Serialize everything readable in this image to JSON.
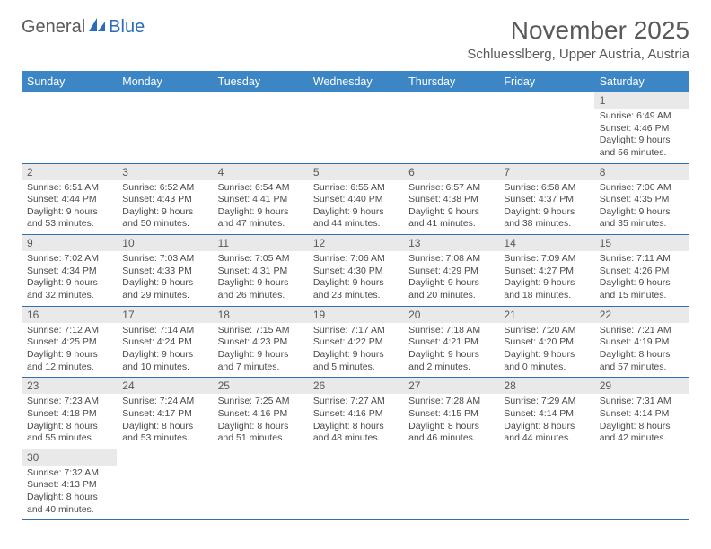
{
  "logo": {
    "text1": "General",
    "text2": "Blue"
  },
  "header": {
    "month_title": "November 2025",
    "location": "Schluesslberg, Upper Austria, Austria"
  },
  "colors": {
    "header_bg": "#3d86c6",
    "header_text": "#ffffff",
    "daynum_bg": "#e9e9e9",
    "row_divider": "#2f6fb3",
    "body_text": "#4a4a4a",
    "title_text": "#595959"
  },
  "day_names": [
    "Sunday",
    "Monday",
    "Tuesday",
    "Wednesday",
    "Thursday",
    "Friday",
    "Saturday"
  ],
  "weeks": [
    [
      null,
      null,
      null,
      null,
      null,
      null,
      {
        "n": "1",
        "sr": "Sunrise: 6:49 AM",
        "ss": "Sunset: 4:46 PM",
        "d1": "Daylight: 9 hours",
        "d2": "and 56 minutes."
      }
    ],
    [
      {
        "n": "2",
        "sr": "Sunrise: 6:51 AM",
        "ss": "Sunset: 4:44 PM",
        "d1": "Daylight: 9 hours",
        "d2": "and 53 minutes."
      },
      {
        "n": "3",
        "sr": "Sunrise: 6:52 AM",
        "ss": "Sunset: 4:43 PM",
        "d1": "Daylight: 9 hours",
        "d2": "and 50 minutes."
      },
      {
        "n": "4",
        "sr": "Sunrise: 6:54 AM",
        "ss": "Sunset: 4:41 PM",
        "d1": "Daylight: 9 hours",
        "d2": "and 47 minutes."
      },
      {
        "n": "5",
        "sr": "Sunrise: 6:55 AM",
        "ss": "Sunset: 4:40 PM",
        "d1": "Daylight: 9 hours",
        "d2": "and 44 minutes."
      },
      {
        "n": "6",
        "sr": "Sunrise: 6:57 AM",
        "ss": "Sunset: 4:38 PM",
        "d1": "Daylight: 9 hours",
        "d2": "and 41 minutes."
      },
      {
        "n": "7",
        "sr": "Sunrise: 6:58 AM",
        "ss": "Sunset: 4:37 PM",
        "d1": "Daylight: 9 hours",
        "d2": "and 38 minutes."
      },
      {
        "n": "8",
        "sr": "Sunrise: 7:00 AM",
        "ss": "Sunset: 4:35 PM",
        "d1": "Daylight: 9 hours",
        "d2": "and 35 minutes."
      }
    ],
    [
      {
        "n": "9",
        "sr": "Sunrise: 7:02 AM",
        "ss": "Sunset: 4:34 PM",
        "d1": "Daylight: 9 hours",
        "d2": "and 32 minutes."
      },
      {
        "n": "10",
        "sr": "Sunrise: 7:03 AM",
        "ss": "Sunset: 4:33 PM",
        "d1": "Daylight: 9 hours",
        "d2": "and 29 minutes."
      },
      {
        "n": "11",
        "sr": "Sunrise: 7:05 AM",
        "ss": "Sunset: 4:31 PM",
        "d1": "Daylight: 9 hours",
        "d2": "and 26 minutes."
      },
      {
        "n": "12",
        "sr": "Sunrise: 7:06 AM",
        "ss": "Sunset: 4:30 PM",
        "d1": "Daylight: 9 hours",
        "d2": "and 23 minutes."
      },
      {
        "n": "13",
        "sr": "Sunrise: 7:08 AM",
        "ss": "Sunset: 4:29 PM",
        "d1": "Daylight: 9 hours",
        "d2": "and 20 minutes."
      },
      {
        "n": "14",
        "sr": "Sunrise: 7:09 AM",
        "ss": "Sunset: 4:27 PM",
        "d1": "Daylight: 9 hours",
        "d2": "and 18 minutes."
      },
      {
        "n": "15",
        "sr": "Sunrise: 7:11 AM",
        "ss": "Sunset: 4:26 PM",
        "d1": "Daylight: 9 hours",
        "d2": "and 15 minutes."
      }
    ],
    [
      {
        "n": "16",
        "sr": "Sunrise: 7:12 AM",
        "ss": "Sunset: 4:25 PM",
        "d1": "Daylight: 9 hours",
        "d2": "and 12 minutes."
      },
      {
        "n": "17",
        "sr": "Sunrise: 7:14 AM",
        "ss": "Sunset: 4:24 PM",
        "d1": "Daylight: 9 hours",
        "d2": "and 10 minutes."
      },
      {
        "n": "18",
        "sr": "Sunrise: 7:15 AM",
        "ss": "Sunset: 4:23 PM",
        "d1": "Daylight: 9 hours",
        "d2": "and 7 minutes."
      },
      {
        "n": "19",
        "sr": "Sunrise: 7:17 AM",
        "ss": "Sunset: 4:22 PM",
        "d1": "Daylight: 9 hours",
        "d2": "and 5 minutes."
      },
      {
        "n": "20",
        "sr": "Sunrise: 7:18 AM",
        "ss": "Sunset: 4:21 PM",
        "d1": "Daylight: 9 hours",
        "d2": "and 2 minutes."
      },
      {
        "n": "21",
        "sr": "Sunrise: 7:20 AM",
        "ss": "Sunset: 4:20 PM",
        "d1": "Daylight: 9 hours",
        "d2": "and 0 minutes."
      },
      {
        "n": "22",
        "sr": "Sunrise: 7:21 AM",
        "ss": "Sunset: 4:19 PM",
        "d1": "Daylight: 8 hours",
        "d2": "and 57 minutes."
      }
    ],
    [
      {
        "n": "23",
        "sr": "Sunrise: 7:23 AM",
        "ss": "Sunset: 4:18 PM",
        "d1": "Daylight: 8 hours",
        "d2": "and 55 minutes."
      },
      {
        "n": "24",
        "sr": "Sunrise: 7:24 AM",
        "ss": "Sunset: 4:17 PM",
        "d1": "Daylight: 8 hours",
        "d2": "and 53 minutes."
      },
      {
        "n": "25",
        "sr": "Sunrise: 7:25 AM",
        "ss": "Sunset: 4:16 PM",
        "d1": "Daylight: 8 hours",
        "d2": "and 51 minutes."
      },
      {
        "n": "26",
        "sr": "Sunrise: 7:27 AM",
        "ss": "Sunset: 4:16 PM",
        "d1": "Daylight: 8 hours",
        "d2": "and 48 minutes."
      },
      {
        "n": "27",
        "sr": "Sunrise: 7:28 AM",
        "ss": "Sunset: 4:15 PM",
        "d1": "Daylight: 8 hours",
        "d2": "and 46 minutes."
      },
      {
        "n": "28",
        "sr": "Sunrise: 7:29 AM",
        "ss": "Sunset: 4:14 PM",
        "d1": "Daylight: 8 hours",
        "d2": "and 44 minutes."
      },
      {
        "n": "29",
        "sr": "Sunrise: 7:31 AM",
        "ss": "Sunset: 4:14 PM",
        "d1": "Daylight: 8 hours",
        "d2": "and 42 minutes."
      }
    ],
    [
      {
        "n": "30",
        "sr": "Sunrise: 7:32 AM",
        "ss": "Sunset: 4:13 PM",
        "d1": "Daylight: 8 hours",
        "d2": "and 40 minutes."
      },
      null,
      null,
      null,
      null,
      null,
      null
    ]
  ]
}
